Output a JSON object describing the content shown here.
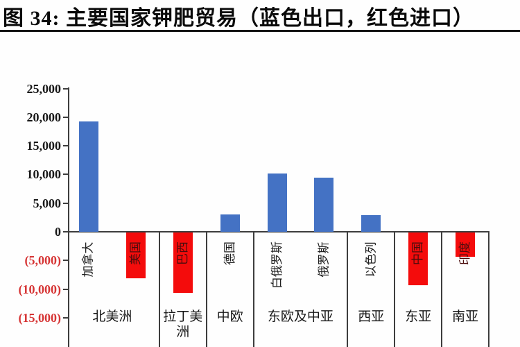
{
  "title": "图 34: 主要国家钾肥贸易（蓝色出口，红色进口）",
  "colors": {
    "export_blue": "#4472C4",
    "import_red": "#F40C0C",
    "negative_tick_red": "#D63535",
    "axis": "#3D3D3D"
  },
  "chart_data": {
    "type": "bar",
    "title": "主要国家钾肥贸易（蓝色出口，红色进口）",
    "figure_label": "图 34",
    "categories": [
      "加拿大",
      "美国",
      "巴西",
      "德国",
      "白俄罗斯",
      "俄罗斯",
      "以色列",
      "中国",
      "印度"
    ],
    "values": [
      19300,
      -8000,
      -10500,
      3000,
      10200,
      9500,
      2900,
      -9200,
      -4200
    ],
    "series_note": "正值为出口(蓝色)，负值为进口(红色)",
    "groups": [
      {
        "label": "北美洲",
        "count": 2
      },
      {
        "label": "拉丁美洲",
        "count": 1
      },
      {
        "label": "中欧",
        "count": 1
      },
      {
        "label": "东欧及中亚",
        "count": 2
      },
      {
        "label": "西亚",
        "count": 1
      },
      {
        "label": "东亚",
        "count": 1
      },
      {
        "label": "南亚",
        "count": 1
      }
    ],
    "y_ticks": [
      {
        "label": "25,000",
        "value": 25000,
        "negative": false
      },
      {
        "label": "20,000",
        "value": 20000,
        "negative": false
      },
      {
        "label": "15,000",
        "value": 15000,
        "negative": false
      },
      {
        "label": "10,000",
        "value": 10000,
        "negative": false
      },
      {
        "label": "5,000",
        "value": 5000,
        "negative": false
      },
      {
        "label": "0",
        "value": 0,
        "negative": false
      },
      {
        "label": "(5,000)",
        "value": -5000,
        "negative": true
      },
      {
        "label": "(10,000)",
        "value": -10000,
        "negative": true
      },
      {
        "label": "(15,000)",
        "value": -15000,
        "negative": true
      }
    ],
    "ylim": [
      -17000,
      25000
    ],
    "grid": false,
    "legend_position": "none (color-coded in title)"
  }
}
